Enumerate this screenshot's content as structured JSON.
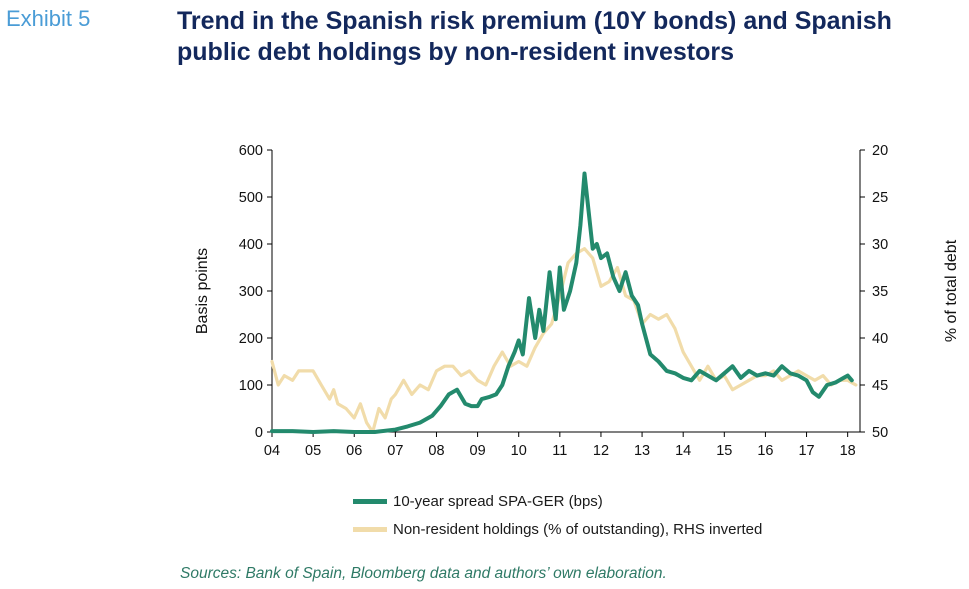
{
  "header": {
    "exhibit": "Exhibit 5",
    "title_line1": "Trend in the Spanish risk premium (10Y bonds) and Spanish",
    "title_line2": "public debt holdings by non-resident investors"
  },
  "source": "Sources: Bank of Spain, Bloomberg data and authors’ own elaboration.",
  "colors": {
    "spread": "#238a6d",
    "holdings": "#f1dcaa",
    "axis": "#000000"
  },
  "chart_data": {
    "type": "line",
    "title": "Trend in the Spanish risk premium (10Y bonds) and Spanish public debt holdings by non-resident investors",
    "xlabel": "",
    "ylabel": "Basis points",
    "y2label": "% of total debt",
    "x_tick_labels": [
      "04",
      "05",
      "06",
      "07",
      "08",
      "09",
      "10",
      "11",
      "12",
      "13",
      "14",
      "15",
      "16",
      "17",
      "18"
    ],
    "xlim": [
      2004,
      2018.3
    ],
    "ylim": [
      0,
      600
    ],
    "y_ticks": [
      "0",
      "100",
      "200",
      "300",
      "400",
      "500",
      "600"
    ],
    "y2lim": [
      20,
      50
    ],
    "y2_inverted": true,
    "y2_ticks": [
      "20",
      "25",
      "30",
      "35",
      "40",
      "45",
      "50"
    ],
    "legend_position": "bottom",
    "grid": false,
    "series": [
      {
        "name": "10-year spread SPA-GER (bps)",
        "axis": "left",
        "x": [
          2004.0,
          2004.5,
          2005.0,
          2005.5,
          2006.0,
          2006.5,
          2007.0,
          2007.3,
          2007.6,
          2007.9,
          2008.1,
          2008.3,
          2008.5,
          2008.7,
          2008.85,
          2009.0,
          2009.1,
          2009.3,
          2009.45,
          2009.6,
          2009.75,
          2009.9,
          2010.0,
          2010.1,
          2010.25,
          2010.4,
          2010.5,
          2010.6,
          2010.75,
          2010.9,
          2011.0,
          2011.1,
          2011.25,
          2011.4,
          2011.5,
          2011.6,
          2011.7,
          2011.8,
          2011.9,
          2012.0,
          2012.15,
          2012.3,
          2012.45,
          2012.6,
          2012.75,
          2012.9,
          2013.0,
          2013.2,
          2013.4,
          2013.6,
          2013.8,
          2014.0,
          2014.2,
          2014.4,
          2014.6,
          2014.8,
          2015.0,
          2015.2,
          2015.4,
          2015.6,
          2015.8,
          2016.0,
          2016.2,
          2016.4,
          2016.6,
          2016.8,
          2017.0,
          2017.15,
          2017.3,
          2017.5,
          2017.7,
          2017.9,
          2018.0,
          2018.1
        ],
        "values": [
          2,
          2,
          0,
          2,
          0,
          0,
          5,
          12,
          20,
          35,
          55,
          80,
          90,
          60,
          55,
          55,
          70,
          75,
          80,
          100,
          140,
          170,
          195,
          165,
          285,
          200,
          260,
          215,
          340,
          240,
          350,
          260,
          300,
          360,
          440,
          550,
          470,
          390,
          400,
          370,
          380,
          330,
          300,
          340,
          290,
          270,
          230,
          165,
          150,
          130,
          125,
          115,
          110,
          130,
          120,
          110,
          125,
          140,
          115,
          130,
          120,
          125,
          120,
          140,
          125,
          120,
          110,
          85,
          75,
          100,
          105,
          115,
          120,
          110
        ]
      },
      {
        "name": "Non-resident holdings (% of outstanding), RHS inverted",
        "axis": "right",
        "x": [
          2004.0,
          2004.15,
          2004.3,
          2004.5,
          2004.65,
          2004.8,
          2005.0,
          2005.2,
          2005.4,
          2005.5,
          2005.6,
          2005.8,
          2006.0,
          2006.15,
          2006.3,
          2006.45,
          2006.6,
          2006.75,
          2006.9,
          2007.0,
          2007.2,
          2007.4,
          2007.6,
          2007.8,
          2008.0,
          2008.2,
          2008.4,
          2008.6,
          2008.8,
          2009.0,
          2009.2,
          2009.4,
          2009.6,
          2009.8,
          2010.0,
          2010.2,
          2010.4,
          2010.6,
          2010.8,
          2011.0,
          2011.2,
          2011.4,
          2011.6,
          2011.8,
          2012.0,
          2012.2,
          2012.4,
          2012.6,
          2012.8,
          2013.0,
          2013.2,
          2013.4,
          2013.6,
          2013.8,
          2014.0,
          2014.2,
          2014.4,
          2014.6,
          2014.8,
          2015.0,
          2015.2,
          2015.4,
          2015.6,
          2015.8,
          2016.0,
          2016.2,
          2016.4,
          2016.6,
          2016.8,
          2017.0,
          2017.2,
          2017.4,
          2017.6,
          2017.8,
          2018.0,
          2018.2
        ],
        "values": [
          42.5,
          45.0,
          44.0,
          44.5,
          43.5,
          43.5,
          43.5,
          45.0,
          46.5,
          45.5,
          47.0,
          47.5,
          48.5,
          47.0,
          49.0,
          50.0,
          47.5,
          48.5,
          46.5,
          46.0,
          44.5,
          46.0,
          45.0,
          45.5,
          43.5,
          43.0,
          43.0,
          44.0,
          43.5,
          44.5,
          45.0,
          43.0,
          41.5,
          43.0,
          42.5,
          43.0,
          41.0,
          39.5,
          38.5,
          35.5,
          32.0,
          31.0,
          30.5,
          31.5,
          34.5,
          34.0,
          32.5,
          35.5,
          36.0,
          38.5,
          37.5,
          38.0,
          37.5,
          39.0,
          41.5,
          43.0,
          44.5,
          43.0,
          44.5,
          44.0,
          45.5,
          45.0,
          44.5,
          44.0,
          44.0,
          43.5,
          44.5,
          44.0,
          43.5,
          44.0,
          44.5,
          44.0,
          45.0,
          44.5,
          44.5,
          45.0
        ]
      }
    ]
  }
}
